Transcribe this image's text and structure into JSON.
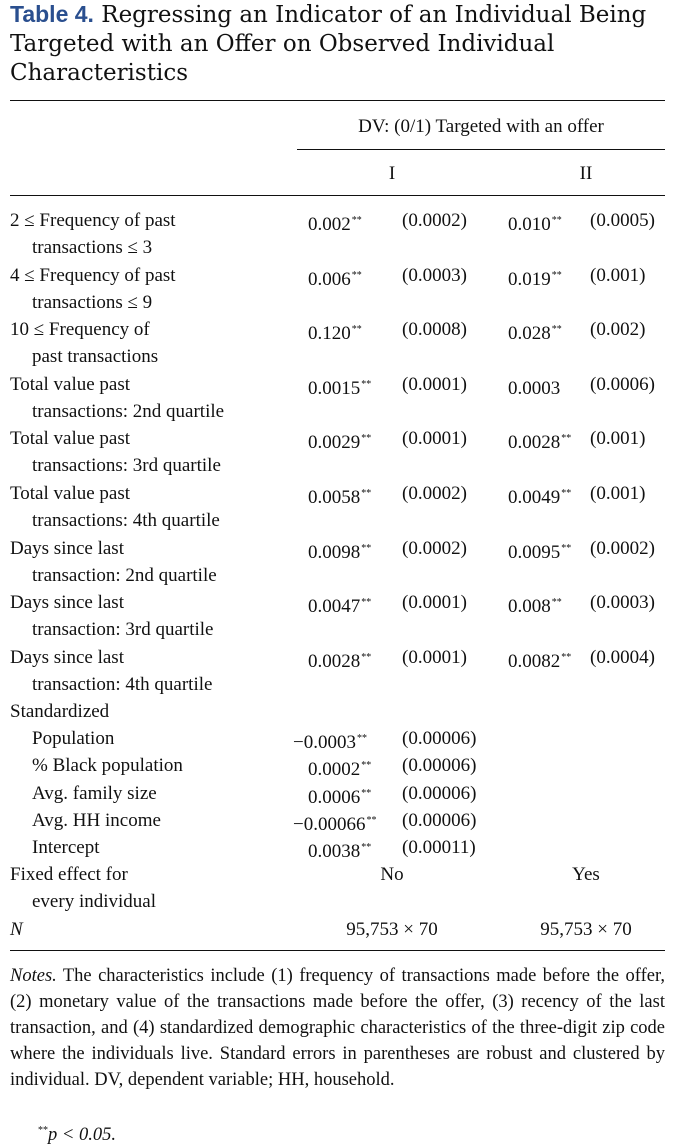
{
  "caption": {
    "label": "Table 4.",
    "text": "Regressing an Indicator of an Individual Being Targeted with an Offer on Observed Individual Characteristics"
  },
  "header": {
    "dv": "DV: (0/1) Targeted with an offer",
    "col1": "I",
    "col2": "II"
  },
  "rows": [
    {
      "l1": "2 ≤ Frequency of past",
      "l2": "transactions ≤ 3",
      "c1": "0.002",
      "s1": "**",
      "c2": "(0.0002)",
      "c3": "0.010",
      "s3": "**",
      "c4": "(0.0005)"
    },
    {
      "l1": "4 ≤ Frequency of past",
      "l2": "transactions ≤ 9",
      "c1": "0.006",
      "s1": "**",
      "c2": "(0.0003)",
      "c3": "0.019",
      "s3": "**",
      "c4": "(0.001)"
    },
    {
      "l1": "10 ≤ Frequency of",
      "l2": "past transactions",
      "c1": "0.120",
      "s1": "**",
      "c2": "(0.0008)",
      "c3": "0.028",
      "s3": "**",
      "c4": "(0.002)"
    },
    {
      "l1": "Total value past",
      "l2": "transactions: 2nd quartile",
      "c1": "0.0015",
      "s1": "**",
      "c2": "(0.0001)",
      "c3": "0.0003",
      "s3": "",
      "c4": "(0.0006)"
    },
    {
      "l1": "Total value past",
      "l2": "transactions: 3rd quartile",
      "c1": "0.0029",
      "s1": "**",
      "c2": "(0.0001)",
      "c3": "0.0028",
      "s3": "**",
      "c4": "(0.001)"
    },
    {
      "l1": "Total value past",
      "l2": "transactions: 4th quartile",
      "c1": "0.0058",
      "s1": "**",
      "c2": "(0.0002)",
      "c3": "0.0049",
      "s3": "**",
      "c4": "(0.001)"
    },
    {
      "l1": "Days since last",
      "l2": "transaction: 2nd quartile",
      "c1": "0.0098",
      "s1": "**",
      "c2": "(0.0002)",
      "c3": "0.0095",
      "s3": "**",
      "c4": "(0.0002)"
    },
    {
      "l1": "Days since last",
      "l2": "transaction: 3rd quartile",
      "c1": "0.0047",
      "s1": "**",
      "c2": "(0.0001)",
      "c3": "0.008",
      "s3": "**",
      "c4": "(0.0003)"
    },
    {
      "l1": "Days since last",
      "l2": "transaction: 4th quartile",
      "c1": "0.0028",
      "s1": "**",
      "c2": "(0.0001)",
      "c3": "0.0082",
      "s3": "**",
      "c4": "(0.0004)"
    }
  ],
  "standardized": {
    "label": "Standardized",
    "rows": [
      {
        "label": "Population",
        "c1": "−0.0003",
        "s1": "**",
        "c2": "(0.00006)"
      },
      {
        "label": "% Black population",
        "c1": "0.0002",
        "s1": "**",
        "c2": "(0.00006)"
      },
      {
        "label": "Avg. family size",
        "c1": "0.0006",
        "s1": "**",
        "c2": "(0.00006)"
      },
      {
        "label": "Avg. HH income",
        "c1": "−0.00066",
        "s1": "**",
        "c2": "(0.00006)"
      },
      {
        "label": "Intercept",
        "c1": "0.0038",
        "s1": "**",
        "c2": "(0.00011)"
      }
    ]
  },
  "fixed_effect": {
    "l1": "Fixed effect for",
    "l2": "every individual",
    "col1": "No",
    "col2": "Yes"
  },
  "n_row": {
    "label": "N",
    "col1": "95,753 × 70",
    "col2": "95,753 × 70"
  },
  "notes": {
    "label": "Notes.",
    "text": "The characteristics include (1) frequency of transactions made before the offer, (2) monetary value of the transactions made before the offer, (3) recency of the last transaction, and (4) standardized demographic characteristics of the three-digit zip code where the individuals live. Standard errors in parentheses are robust and clustered by individual. DV, dependent variable; HH, household.",
    "sig_mark": "**",
    "sig_text": "p < 0.05."
  }
}
